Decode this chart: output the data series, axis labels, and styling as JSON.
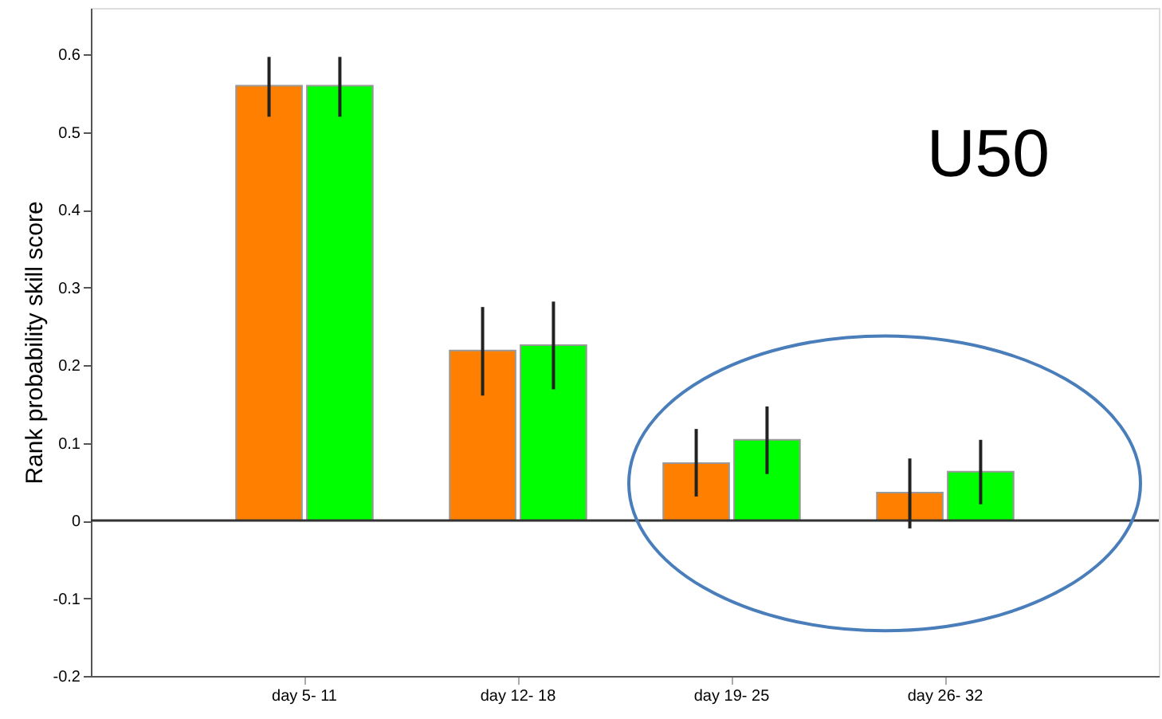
{
  "chart_data": {
    "type": "bar",
    "ylabel": "Rank probability skill score",
    "categories": [
      "day  5- 11",
      "day 12- 18",
      "day 19- 25",
      "day 26- 32"
    ],
    "series": [
      {
        "color": "#ff8000",
        "values": [
          0.56,
          0.219,
          0.074,
          0.036
        ],
        "errors": [
          [
            0.52,
            0.597
          ],
          [
            0.161,
            0.275
          ],
          [
            0.031,
            0.118
          ],
          [
            -0.01,
            0.08
          ]
        ]
      },
      {
        "color": "#00ff00",
        "values": [
          0.56,
          0.226,
          0.104,
          0.063
        ],
        "errors": [
          [
            0.52,
            0.597
          ],
          [
            0.169,
            0.282
          ],
          [
            0.06,
            0.147
          ],
          [
            0.021,
            0.104
          ]
        ]
      }
    ],
    "ylim": [
      -0.2,
      0.66
    ],
    "yticks": [
      -0.2,
      -0.1,
      0,
      0.1,
      0.2,
      0.3,
      0.4,
      0.5,
      0.6
    ],
    "ref_lines": [
      {
        "axis": "y",
        "value": 0,
        "color": "#333333"
      }
    ],
    "annotations": [
      "U50"
    ],
    "grid": false
  }
}
